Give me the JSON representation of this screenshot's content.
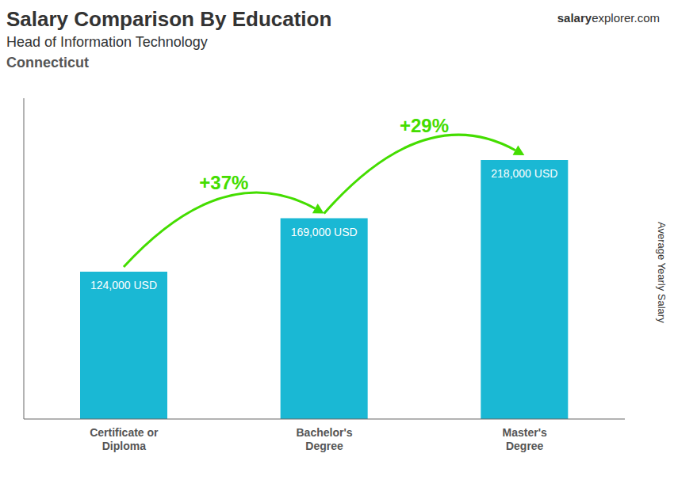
{
  "chart_data": {
    "type": "bar",
    "title": "Salary Comparison By Education",
    "subtitle": [
      "Head of Information Technology",
      "Connecticut"
    ],
    "watermark": [
      "salary",
      "explorer.com"
    ],
    "ylabel": "Average Yearly Salary",
    "categories": [
      "Certificate or\nDiploma",
      "Bachelor's\nDegree",
      "Master's\nDegree"
    ],
    "values": [
      124000,
      169000,
      218000
    ],
    "value_labels": [
      "124,000 USD",
      "169,000 USD",
      "218,000 USD"
    ],
    "data_labels": true,
    "annotations": [
      {
        "text": "+37%",
        "color": "#44dd00"
      },
      {
        "text": "+29%",
        "color": "#44dd00"
      }
    ],
    "color": "#1ab8d4",
    "ylim": [
      0,
      270000
    ],
    "tick_labels": "x",
    "grid": false
  }
}
